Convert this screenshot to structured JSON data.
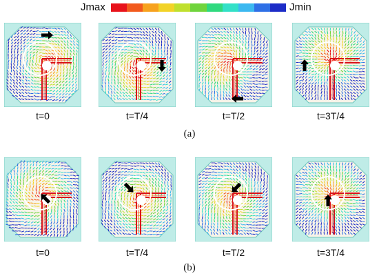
{
  "legend": {
    "max_label": "Jmax",
    "min_label": "Jmin",
    "colors": [
      "#e8131b",
      "#f25a1d",
      "#f7a21e",
      "#f2d327",
      "#bfe02e",
      "#6fd43c",
      "#2fd97e",
      "#32e0c7",
      "#3bb8f0",
      "#2e6fe6",
      "#1c2cc7"
    ]
  },
  "rows": [
    {
      "label": "(a)",
      "panels": [
        {
          "time": "t=0",
          "arrow_angle": 0
        },
        {
          "time": "t=T/4",
          "arrow_angle": 90
        },
        {
          "time": "t=T/2",
          "arrow_angle": 180
        },
        {
          "time": "t=3T/4",
          "arrow_angle": 270
        }
      ]
    },
    {
      "label": "(b)",
      "panels": [
        {
          "time": "t=0",
          "arrow_angle": -135
        },
        {
          "time": "t=T/4",
          "arrow_angle": 45
        },
        {
          "time": "t=T/2",
          "arrow_angle": 135
        },
        {
          "time": "t=3T/4",
          "arrow_angle": 270
        }
      ]
    }
  ]
}
